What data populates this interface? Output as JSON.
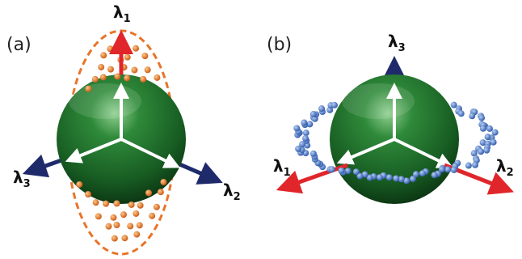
{
  "panels": [
    {
      "label": "(a)",
      "axes": [
        {
          "symbol": "λ",
          "subscript": "1"
        },
        {
          "symbol": "λ",
          "subscript": "2"
        },
        {
          "symbol": "λ",
          "subscript": "3"
        }
      ]
    },
    {
      "label": "(b)",
      "axes": [
        {
          "symbol": "λ",
          "subscript": "1"
        },
        {
          "symbol": "λ",
          "subscript": "2"
        },
        {
          "symbol": "λ",
          "subscript": "3"
        }
      ]
    }
  ]
}
